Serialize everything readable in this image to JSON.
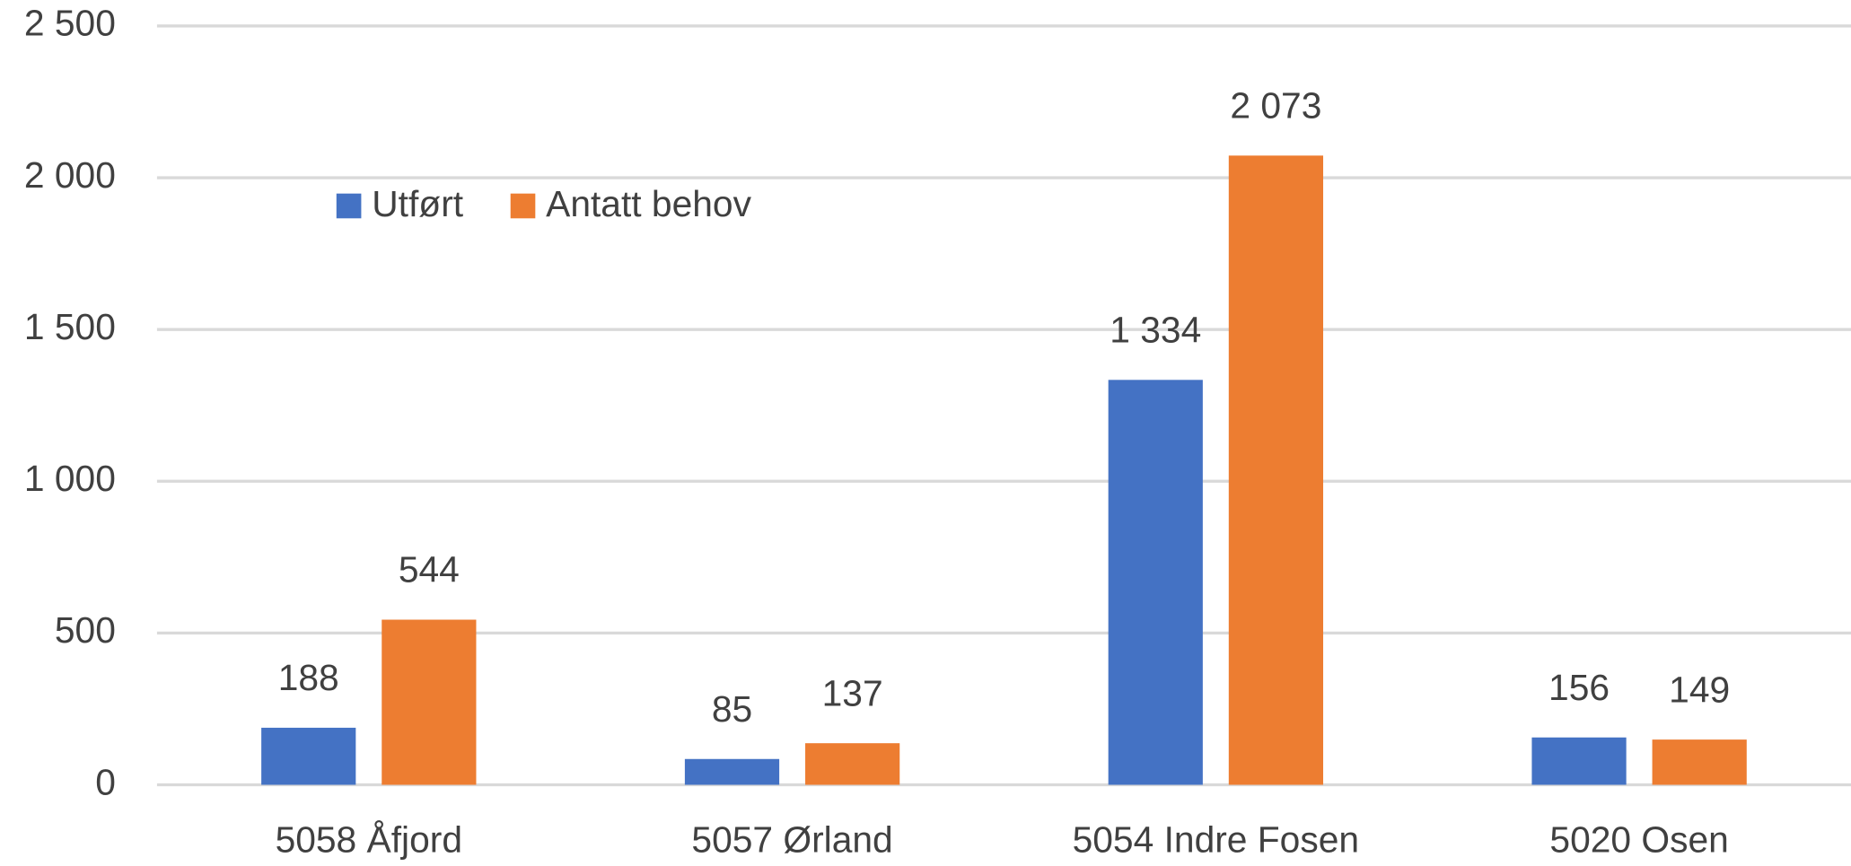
{
  "chart_data": {
    "type": "bar",
    "categories": [
      "5058 Åfjord",
      "5057 Ørland",
      "5054 Indre Fosen",
      "5020 Osen"
    ],
    "series": [
      {
        "name": "Utført",
        "color": "#4472c4",
        "values": [
          188,
          85,
          1334,
          156
        ],
        "value_labels": [
          "188",
          "85",
          "1 334",
          "156"
        ]
      },
      {
        "name": "Antatt behov",
        "color": "#ed7d31",
        "values": [
          544,
          137,
          2073,
          149
        ],
        "value_labels": [
          "544",
          "137",
          "2 073",
          "149"
        ]
      }
    ],
    "ylim": [
      0,
      2500
    ],
    "yticks": [
      0,
      500,
      {
        "value": 1000,
        "label": "1 000"
      },
      {
        "value": 1500,
        "label": "1 500"
      },
      {
        "value": 2000,
        "label": "2 000"
      },
      {
        "value": 2500,
        "label": "2 500"
      }
    ],
    "grid": true,
    "legend": "top-left"
  }
}
